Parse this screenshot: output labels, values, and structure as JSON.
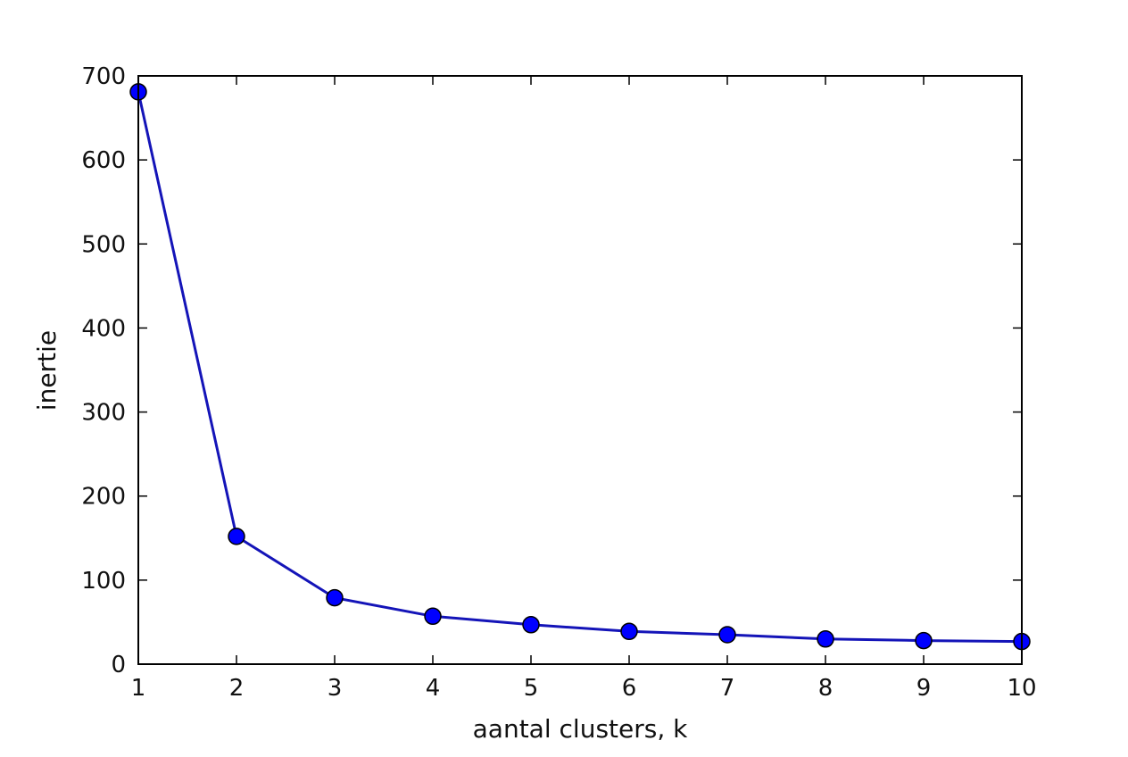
{
  "chart_data": {
    "type": "line",
    "title": "",
    "xlabel": "aantal clusters, k",
    "ylabel": "inertie",
    "xlim": [
      1,
      10
    ],
    "ylim": [
      0,
      700
    ],
    "x_ticks": [
      1,
      2,
      3,
      4,
      5,
      6,
      7,
      8,
      9,
      10
    ],
    "y_ticks": [
      0,
      100,
      200,
      300,
      400,
      500,
      600,
      700
    ],
    "grid": false,
    "legend": "none",
    "series": [
      {
        "x": [
          1,
          2,
          3,
          4,
          5,
          6,
          7,
          8,
          9,
          10
        ],
        "y": [
          681,
          152,
          79,
          57,
          47,
          39,
          35,
          30,
          28,
          27
        ],
        "line_color": "#1414b8",
        "marker_color": "#0000ff",
        "marker_edge_color": "#000000",
        "marker": "circle"
      }
    ]
  }
}
